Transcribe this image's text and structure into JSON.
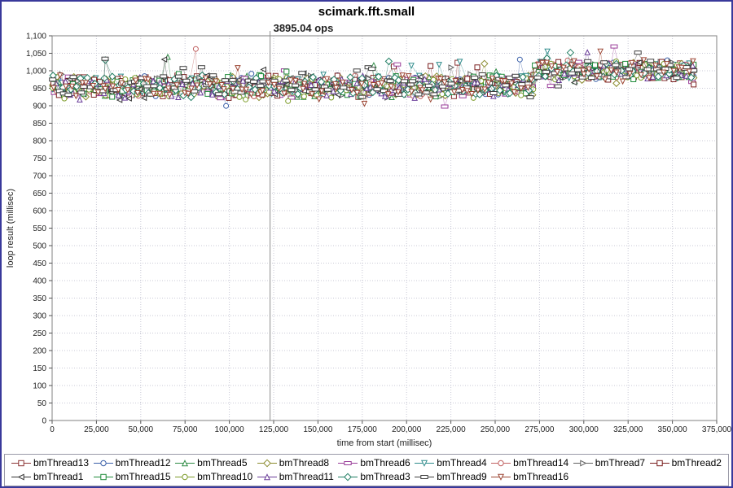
{
  "colors": {
    "frame_border": "#39399b",
    "grid": "#c9c9d6",
    "axis": "#808080",
    "tick": "#555555",
    "annotation_line": "#8c8c8c",
    "plot_background": "#ffffff"
  },
  "chart_data": {
    "type": "scatter",
    "title": "scimark.fft.small",
    "xlabel": "time from start (millisec)",
    "ylabel": "loop result (millisec)",
    "xlim": [
      0,
      375000
    ],
    "ylim": [
      0,
      1100
    ],
    "x_tick_step": 25000,
    "y_tick_step": 50,
    "grid": true,
    "legend_position": "bottom",
    "annotation": {
      "x": 123000,
      "label": "3895.04 ops"
    },
    "generation": {
      "x_start": 900,
      "x_end": 362000,
      "points_per_series": 120,
      "x_jitter": 1500,
      "segments": [
        {
          "x_to": 272000,
          "y_center": 956,
          "y_spread": 36
        },
        {
          "x_to": 362000,
          "y_center": 1002,
          "y_spread": 30
        }
      ],
      "spike_prob": 0.03,
      "spike_mag": 60,
      "dip_prob": 0.05,
      "dip_mag": 24
    },
    "series": [
      {
        "name": "bmThread13",
        "color": "#8b3333",
        "marker": "square",
        "seed": 13,
        "legend_row": 1
      },
      {
        "name": "bmThread12",
        "color": "#3a5fa8",
        "marker": "circle",
        "seed": 12,
        "legend_row": 1
      },
      {
        "name": "bmThread5",
        "color": "#2e8b45",
        "marker": "triangle-up",
        "seed": 5,
        "legend_row": 1
      },
      {
        "name": "bmThread8",
        "color": "#8b8b2e",
        "marker": "diamond",
        "seed": 8,
        "legend_row": 1
      },
      {
        "name": "bmThread6",
        "color": "#993d99",
        "marker": "hbar",
        "seed": 6,
        "legend_row": 1
      },
      {
        "name": "bmThread4",
        "color": "#2e8b8b",
        "marker": "triangle-down",
        "seed": 4,
        "legend_row": 1
      },
      {
        "name": "bmThread14",
        "color": "#c06060",
        "marker": "circle",
        "seed": 14,
        "legend_row": 1
      },
      {
        "name": "bmThread7",
        "color": "#606060",
        "marker": "triangle-right",
        "seed": 7,
        "legend_row": 1
      },
      {
        "name": "bmThread2",
        "color": "#7a1f1f",
        "marker": "square",
        "seed": 2,
        "legend_row": 1
      },
      {
        "name": "bmThread1",
        "color": "#333333",
        "marker": "triangle-left",
        "seed": 1,
        "legend_row": 2
      },
      {
        "name": "bmThread15",
        "color": "#1f8b3a",
        "marker": "square",
        "seed": 15,
        "legend_row": 2
      },
      {
        "name": "bmThread10",
        "color": "#7d9c2a",
        "marker": "circle",
        "seed": 10,
        "legend_row": 2
      },
      {
        "name": "bmThread11",
        "color": "#6a3d99",
        "marker": "triangle-up",
        "seed": 11,
        "legend_row": 2
      },
      {
        "name": "bmThread3",
        "color": "#1f7d62",
        "marker": "diamond",
        "seed": 3,
        "legend_row": 2
      },
      {
        "name": "bmThread9",
        "color": "#404040",
        "marker": "hbar",
        "seed": 9,
        "legend_row": 2
      },
      {
        "name": "bmThread16",
        "color": "#9c4533",
        "marker": "triangle-down",
        "seed": 16,
        "legend_row": 2
      }
    ]
  }
}
